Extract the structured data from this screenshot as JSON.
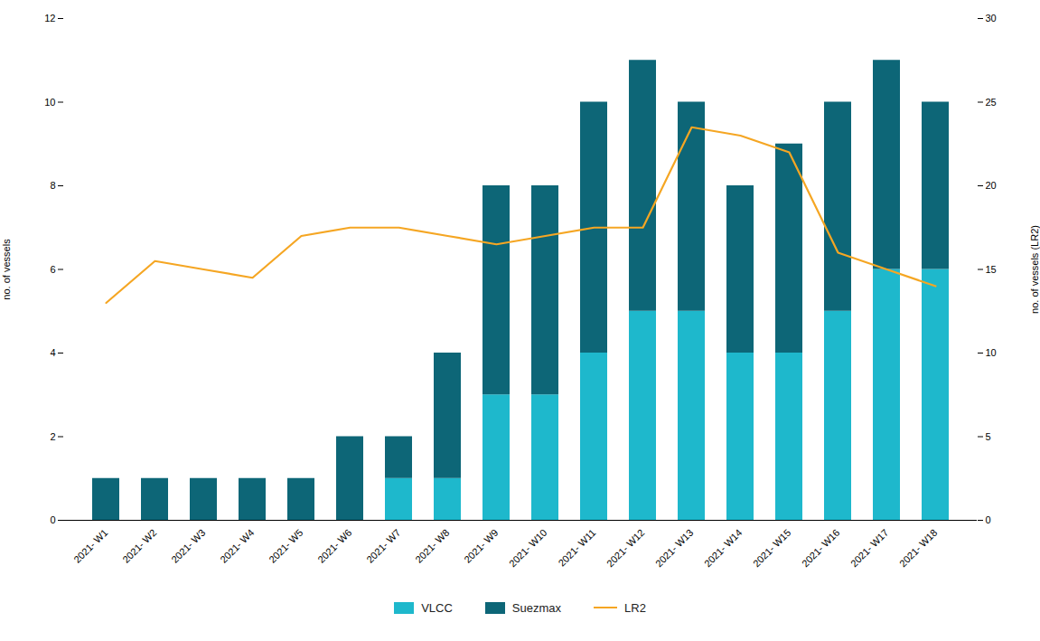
{
  "chart_data": {
    "type": "bar",
    "stacked": true,
    "categories": [
      "2021- W1",
      "2021- W2",
      "2021- W3",
      "2021- W4",
      "2021- W5",
      "2021- W6",
      "2021- W7",
      "2021- W8",
      "2021- W9",
      "2021- W10",
      "2021- W11",
      "2021- W12",
      "2021- W13",
      "2021- W14",
      "2021- W15",
      "2021- W16",
      "2021- W17",
      "2021- W18"
    ],
    "series": [
      {
        "name": "VLCC",
        "color": "#1EB8CC",
        "values": [
          0,
          0,
          0,
          0,
          0,
          0,
          1,
          1,
          3,
          3,
          4,
          5,
          5,
          4,
          4,
          5,
          6,
          6
        ]
      },
      {
        "name": "Suezmax",
        "color": "#0D6677",
        "values": [
          1,
          1,
          1,
          1,
          1,
          2,
          1,
          3,
          5,
          5,
          6,
          6,
          5,
          4,
          5,
          5,
          5,
          4
        ]
      },
      {
        "name": "LR2",
        "color": "#F5A623",
        "type": "line",
        "axis": "y2",
        "values": [
          13,
          15.5,
          15.0,
          14.5,
          17.0,
          17.5,
          17.5,
          17.0,
          16.5,
          17.0,
          17.5,
          17.5,
          23.5,
          23.0,
          22.0,
          16.0,
          15.0,
          14.0
        ]
      }
    ],
    "ylabel": "no. of vessels",
    "y2label": "no. of vessels (LR2)",
    "ylim": [
      0,
      12
    ],
    "yticks": [
      0,
      2,
      4,
      6,
      8,
      10,
      12
    ],
    "y2lim": [
      0,
      30
    ],
    "y2ticks": [
      0,
      5,
      10,
      15,
      20,
      25,
      30
    ],
    "grid": false,
    "legend": "bottom"
  }
}
